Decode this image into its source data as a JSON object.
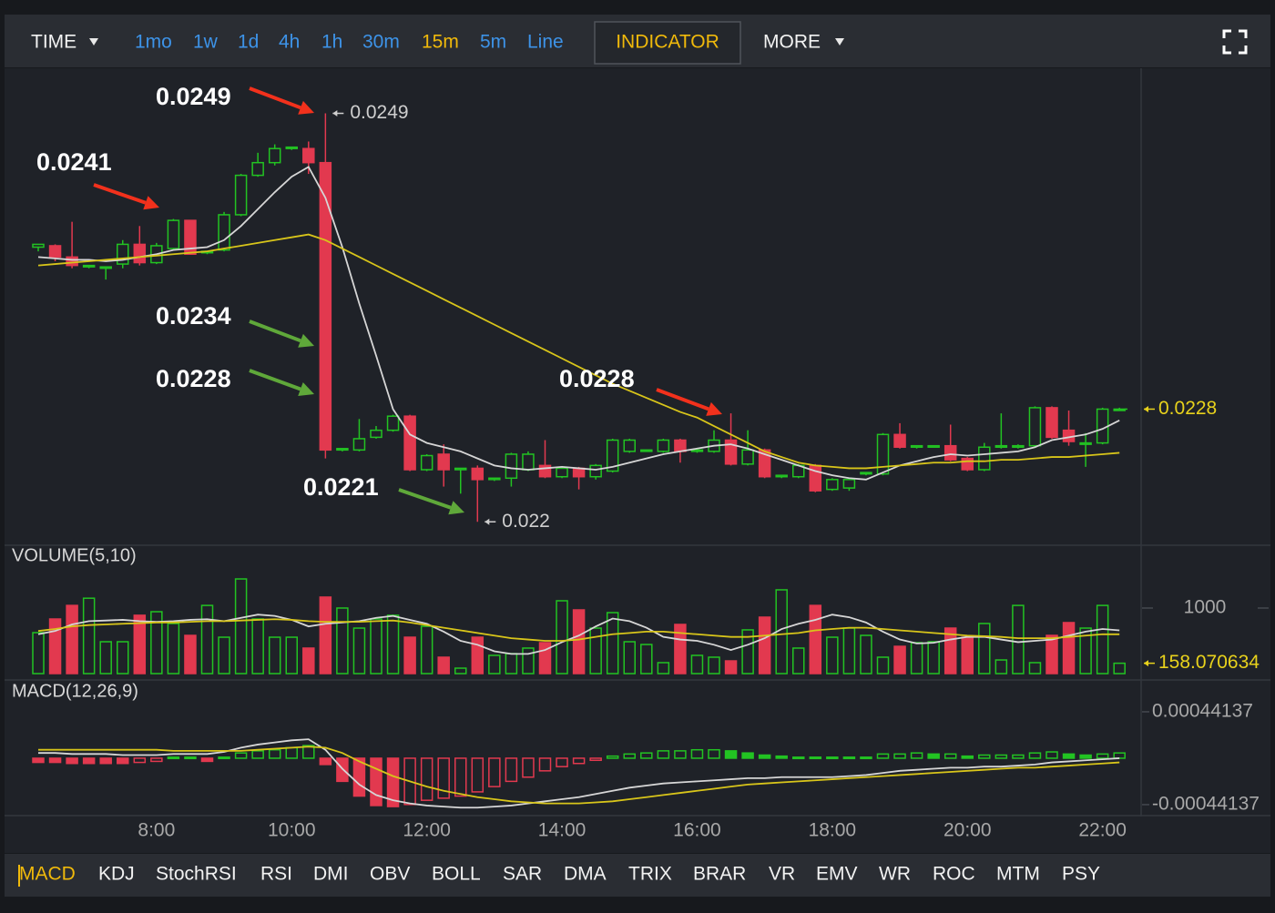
{
  "toolbar": {
    "time": "TIME",
    "intervals": [
      {
        "label": "1mo",
        "color": "#3d93e8"
      },
      {
        "label": "1w",
        "color": "#3d93e8"
      },
      {
        "label": "1d",
        "color": "#3d93e8"
      },
      {
        "label": "4h",
        "color": "#3d93e8"
      },
      {
        "label": "1h",
        "color": "#3d93e8"
      },
      {
        "label": "30m",
        "color": "#3d93e8"
      },
      {
        "label": "15m",
        "color": "#f0b90b"
      },
      {
        "label": "5m",
        "color": "#3d93e8"
      },
      {
        "label": "Line",
        "color": "#3d93e8"
      }
    ],
    "indicator": "INDICATOR",
    "more": "MORE"
  },
  "chart_data": [
    {
      "type": "candlestick",
      "up_color": "#22c322",
      "down_color": "#e2394f",
      "ylim": [
        0.02184,
        0.02522
      ],
      "categories": [
        null,
        null,
        null,
        null,
        null,
        null,
        null,
        "8:00",
        null,
        null,
        null,
        null,
        null,
        null,
        null,
        "10:00",
        null,
        null,
        null,
        null,
        null,
        null,
        null,
        "12:00",
        null,
        null,
        null,
        null,
        null,
        null,
        null,
        "14:00",
        null,
        null,
        null,
        null,
        null,
        null,
        null,
        "16:00",
        null,
        null,
        null,
        null,
        null,
        null,
        null,
        "18:00",
        null,
        null,
        null,
        null,
        null,
        null,
        null,
        "20:00",
        null,
        null,
        null,
        null,
        null,
        null,
        null,
        "22:00",
        null
      ],
      "open": [
        0.02395,
        0.02396,
        0.02388,
        0.02381,
        0.0238,
        0.02383,
        0.02397,
        0.02384,
        0.02394,
        0.02414,
        0.02391,
        0.02393,
        0.02418,
        0.02446,
        0.02455,
        0.02465,
        0.02465,
        0.02455,
        0.02251,
        0.02251,
        0.0226,
        0.02265,
        0.02275,
        0.02237,
        0.02248,
        0.02237,
        0.02238,
        0.0223,
        0.02231,
        0.02237,
        0.0224,
        0.02232,
        0.02238,
        0.02232,
        0.02236,
        0.0225,
        0.0225,
        0.0225,
        0.02258,
        0.0225,
        0.0225,
        0.02258,
        0.02241,
        0.02251,
        0.02232,
        0.02232,
        0.0224,
        0.02223,
        0.02224,
        0.02234,
        0.02234,
        0.02262,
        0.02253,
        0.02253,
        0.02254,
        0.02245,
        0.02237,
        0.02253,
        0.02253,
        0.02254,
        0.02281,
        0.02265,
        0.02255,
        0.02256,
        0.0228
      ],
      "high": [
        0.02397,
        0.02397,
        0.02413,
        0.02382,
        0.02381,
        0.024,
        0.0241,
        0.02398,
        0.02415,
        0.02414,
        0.02392,
        0.0242,
        0.02447,
        0.02462,
        0.02468,
        0.02466,
        0.0247,
        0.0249,
        0.02252,
        0.02273,
        0.02268,
        0.02276,
        0.02276,
        0.02248,
        0.02255,
        0.02238,
        0.0224,
        0.02231,
        0.02249,
        0.0225,
        0.02258,
        0.02239,
        0.02239,
        0.02241,
        0.02259,
        0.02259,
        0.02251,
        0.02259,
        0.02259,
        0.02252,
        0.02265,
        0.02277,
        0.02265,
        0.02252,
        0.02233,
        0.02241,
        0.02241,
        0.02231,
        0.02231,
        0.02235,
        0.02263,
        0.0227,
        0.02254,
        0.02254,
        0.02269,
        0.02246,
        0.02256,
        0.02277,
        0.02255,
        0.02282,
        0.02282,
        0.02279,
        0.02263,
        0.02281,
        0.02281
      ],
      "low": [
        0.02392,
        0.02385,
        0.0238,
        0.0238,
        0.02372,
        0.0238,
        0.02382,
        0.02383,
        0.02393,
        0.0239,
        0.0239,
        0.02392,
        0.02417,
        0.02445,
        0.02453,
        0.02464,
        0.02447,
        0.02245,
        0.0225,
        0.0225,
        0.02259,
        0.02264,
        0.02236,
        0.02236,
        0.02225,
        0.0222,
        0.022,
        0.02229,
        0.02225,
        0.02236,
        0.02231,
        0.02231,
        0.02223,
        0.0223,
        0.02235,
        0.02249,
        0.0225,
        0.02249,
        0.02242,
        0.02249,
        0.02249,
        0.0224,
        0.0224,
        0.02231,
        0.02231,
        0.02231,
        0.02221,
        0.02222,
        0.02222,
        0.02233,
        0.02233,
        0.02252,
        0.02252,
        0.02253,
        0.02243,
        0.02236,
        0.02236,
        0.02252,
        0.02252,
        0.02253,
        0.02259,
        0.02254,
        0.02239,
        0.02255,
        0.02279
      ],
      "close": [
        0.02397,
        0.02388,
        0.02382,
        0.02382,
        0.02381,
        0.02397,
        0.02384,
        0.02396,
        0.02414,
        0.0239,
        0.02392,
        0.02418,
        0.02446,
        0.02455,
        0.02465,
        0.02466,
        0.02455,
        0.02251,
        0.02252,
        0.02259,
        0.02265,
        0.02275,
        0.02237,
        0.02247,
        0.02237,
        0.02238,
        0.0223,
        0.02231,
        0.02248,
        0.02248,
        0.02232,
        0.02238,
        0.02232,
        0.0224,
        0.02258,
        0.02258,
        0.02251,
        0.02258,
        0.0225,
        0.02251,
        0.02258,
        0.02241,
        0.02251,
        0.02232,
        0.02233,
        0.0224,
        0.02222,
        0.0223,
        0.0223,
        0.02235,
        0.02262,
        0.02253,
        0.02254,
        0.02254,
        0.02244,
        0.02237,
        0.02253,
        0.02254,
        0.02254,
        0.02281,
        0.0226,
        0.02257,
        0.02256,
        0.0228,
        0.0228
      ],
      "series": [
        {
          "color": "#d6d6d6",
          "values": [
            0.02388,
            0.02387,
            0.02386,
            0.02386,
            0.02385,
            0.02386,
            0.02388,
            0.0239,
            0.02393,
            0.02394,
            0.02395,
            0.024,
            0.0241,
            0.02422,
            0.02434,
            0.02445,
            0.02452,
            0.0243,
            0.02395,
            0.02355,
            0.02318,
            0.0228,
            0.02262,
            0.02256,
            0.02253,
            0.0225,
            0.02245,
            0.0224,
            0.02238,
            0.02237,
            0.02238,
            0.02239,
            0.02238,
            0.02237,
            0.02239,
            0.02242,
            0.02245,
            0.02248,
            0.0225,
            0.02252,
            0.02254,
            0.02255,
            0.02252,
            0.02248,
            0.02244,
            0.0224,
            0.02236,
            0.02233,
            0.02231,
            0.0223,
            0.02235,
            0.0224,
            0.02243,
            0.02246,
            0.02248,
            0.02247,
            0.02248,
            0.02249,
            0.0225,
            0.02253,
            0.02258,
            0.0226,
            0.02262,
            0.02266,
            0.02272
          ]
        },
        {
          "color": "#d8c51a",
          "values": [
            0.02382,
            0.02383,
            0.02384,
            0.02385,
            0.02386,
            0.02387,
            0.02388,
            0.02389,
            0.0239,
            0.02391,
            0.02392,
            0.02394,
            0.02396,
            0.02398,
            0.024,
            0.02402,
            0.02404,
            0.024,
            0.02394,
            0.02388,
            0.02382,
            0.02376,
            0.0237,
            0.02364,
            0.02358,
            0.02352,
            0.02346,
            0.0234,
            0.02334,
            0.02328,
            0.02322,
            0.02316,
            0.0231,
            0.02304,
            0.02298,
            0.02293,
            0.02288,
            0.02283,
            0.02278,
            0.02274,
            0.02268,
            0.02262,
            0.02256,
            0.0225,
            0.02246,
            0.02242,
            0.0224,
            0.02239,
            0.02238,
            0.02238,
            0.02239,
            0.0224,
            0.02241,
            0.02242,
            0.02242,
            0.02243,
            0.02243,
            0.02244,
            0.02244,
            0.02245,
            0.02246,
            0.02246,
            0.02247,
            0.02248,
            0.02249
          ]
        }
      ],
      "last_color": "#e8d21c",
      "annotations": [
        {
          "value": 0.0249,
          "color": "#f2311c"
        },
        {
          "value": 0.0241,
          "color": "#f2311c"
        },
        {
          "value": 0.0234,
          "color": "#5fa83a"
        },
        {
          "value": 0.0228,
          "color": "#5fa83a"
        },
        {
          "value": 0.0221,
          "color": "#5fa83a"
        },
        {
          "value": 0.0228,
          "color": "#f2311c"
        }
      ]
    },
    {
      "type": "bar",
      "title": "VOLUME(5,10)",
      "ylim": [
        0,
        1944
      ],
      "yticks": [
        1000
      ],
      "values": [
        625,
        833,
        1040,
        1150,
        486,
        486,
        890,
        944,
        764,
        583,
        1040,
        555,
        1444,
        833,
        555,
        555,
        389,
        1167,
        1000,
        694,
        833,
        890,
        555,
        722,
        250,
        83,
        555,
        278,
        305,
        389,
        472,
        1111,
        972,
        694,
        930,
        486,
        444,
        167,
        750,
        278,
        250,
        194,
        667,
        861,
        1278,
        389,
        1040,
        555,
        694,
        583,
        250,
        416,
        472,
        486,
        694,
        555,
        764,
        208,
        1040,
        167,
        583,
        778,
        694,
        1040,
        158.070634
      ],
      "series": [
        {
          "color": "#d6d6d6",
          "values": [
            600,
            650,
            750,
            800,
            810,
            820,
            800,
            790,
            800,
            820,
            830,
            800,
            850,
            900,
            880,
            820,
            720,
            760,
            780,
            800,
            850,
            880,
            820,
            760,
            640,
            500,
            440,
            340,
            300,
            300,
            360,
            480,
            580,
            720,
            840,
            800,
            700,
            560,
            520,
            500,
            440,
            360,
            440,
            540,
            680,
            760,
            820,
            900,
            860,
            780,
            640,
            520,
            460,
            470,
            520,
            560,
            560,
            520,
            480,
            500,
            520,
            580,
            640,
            680,
            660
          ]
        },
        {
          "color": "#d8c51a",
          "values": [
            650,
            680,
            720,
            740,
            750,
            760,
            770,
            780,
            780,
            790,
            800,
            800,
            810,
            820,
            830,
            820,
            800,
            790,
            790,
            790,
            800,
            810,
            780,
            740,
            700,
            660,
            620,
            580,
            540,
            520,
            500,
            500,
            520,
            560,
            600,
            620,
            640,
            640,
            620,
            600,
            580,
            560,
            560,
            580,
            600,
            620,
            660,
            680,
            700,
            700,
            680,
            660,
            640,
            620,
            600,
            580,
            570,
            560,
            540,
            540,
            540,
            560,
            580,
            600,
            600
          ]
        }
      ]
    },
    {
      "type": "macd",
      "title": "MACD(12,26,9)",
      "ylim": [
        -0.000537,
        0.000718
      ],
      "yticks": [
        0.00044137,
        -0.00044137
      ],
      "values": [
        -4e-05,
        -4e-05,
        -5e-05,
        -5e-05,
        -5e-05,
        -5e-05,
        -4e-05,
        -3e-05,
        1e-05,
        1e-05,
        -3e-05,
        1e-05,
        5e-05,
        7e-05,
        8e-05,
        0.0001,
        0.00012,
        -6e-05,
        -0.00022,
        -0.00036,
        -0.00045,
        -0.00046,
        -0.00044,
        -0.0004,
        -0.00038,
        -0.00036,
        -0.00032,
        -0.00027,
        -0.00022,
        -0.00018,
        -0.00012,
        -8e-05,
        -5e-05,
        -2e-05,
        2e-05,
        4e-05,
        5e-05,
        7e-05,
        7e-05,
        8e-05,
        8e-05,
        7e-05,
        5e-05,
        3e-05,
        2e-05,
        1e-05,
        1e-05,
        1e-05,
        1e-05,
        1e-05,
        4e-05,
        4e-05,
        5e-05,
        4e-05,
        4e-05,
        2e-05,
        3e-05,
        3e-05,
        3e-05,
        5e-05,
        6e-05,
        4e-05,
        3e-05,
        4e-05,
        5e-05
      ],
      "series": [
        {
          "color": "#d6d6d6",
          "values": [
            5e-05,
            5e-05,
            4e-05,
            4e-05,
            4e-05,
            3e-05,
            3e-05,
            3e-05,
            4e-05,
            4e-05,
            4e-05,
            6e-05,
            0.0001,
            0.00013,
            0.00015,
            0.00017,
            0.00018,
            8e-05,
            -0.0001,
            -0.00025,
            -0.00035,
            -0.0004,
            -0.00043,
            -0.00045,
            -0.00046,
            -0.00047,
            -0.00047,
            -0.00046,
            -0.00045,
            -0.00043,
            -0.00041,
            -0.00039,
            -0.00037,
            -0.00034,
            -0.00031,
            -0.00028,
            -0.00026,
            -0.00024,
            -0.00023,
            -0.00022,
            -0.00021,
            -0.0002,
            -0.00019,
            -0.00019,
            -0.00018,
            -0.00018,
            -0.00018,
            -0.00018,
            -0.00017,
            -0.00016,
            -0.00014,
            -0.00012,
            -0.00011,
            -0.0001,
            -9e-05,
            -9e-05,
            -8e-05,
            -8e-05,
            -7e-05,
            -6e-05,
            -4e-05,
            -3e-05,
            -2e-05,
            -1e-05,
            0.0
          ]
        },
        {
          "color": "#d8c51a",
          "values": [
            8e-05,
            8e-05,
            8e-05,
            8e-05,
            8e-05,
            8e-05,
            8e-05,
            8e-05,
            7e-05,
            7e-05,
            7e-05,
            7e-05,
            7e-05,
            8e-05,
            9e-05,
            0.0001,
            0.00011,
            0.0001,
            5e-05,
            -3e-05,
            -0.0001,
            -0.00017,
            -0.00022,
            -0.00027,
            -0.00031,
            -0.00034,
            -0.00037,
            -0.00039,
            -0.00041,
            -0.00042,
            -0.00043,
            -0.00043,
            -0.00043,
            -0.00042,
            -0.00041,
            -0.00039,
            -0.00037,
            -0.00035,
            -0.00033,
            -0.00031,
            -0.00029,
            -0.00027,
            -0.00025,
            -0.00024,
            -0.00023,
            -0.00022,
            -0.00021,
            -0.0002,
            -0.00019,
            -0.00018,
            -0.00017,
            -0.00016,
            -0.00015,
            -0.00014,
            -0.00013,
            -0.00012,
            -0.00011,
            -0.0001,
            -9e-05,
            -9e-05,
            -8e-05,
            -7e-05,
            -6e-05,
            -5e-05,
            -4e-05
          ]
        }
      ]
    }
  ],
  "tabs": {
    "items": [
      "MACD",
      "KDJ",
      "StochRSI",
      "RSI",
      "DMI",
      "OBV",
      "BOLL",
      "SAR",
      "DMA",
      "TRIX",
      "BRAR",
      "VR",
      "EMV",
      "WR",
      "ROC",
      "MTM",
      "PSY"
    ],
    "color": "#f2f2f2",
    "active": 0,
    "active_color": "#f0b90b"
  }
}
